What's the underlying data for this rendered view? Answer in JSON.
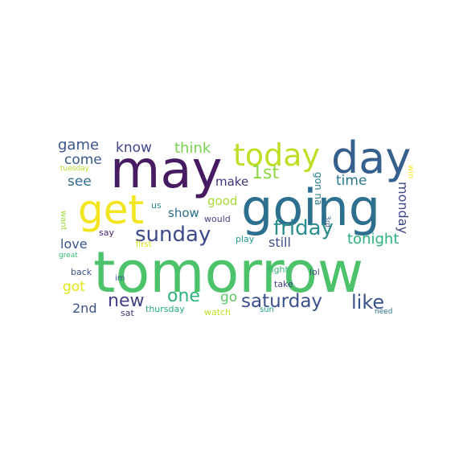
{
  "words": [
    {
      "id": "tomorrow",
      "text": "tomorrow",
      "color": "#4cc26a"
    },
    {
      "id": "going",
      "text": "going",
      "color": "#2c6f8e"
    },
    {
      "id": "may",
      "text": "may",
      "color": "#471b61"
    },
    {
      "id": "day",
      "text": "day",
      "color": "#355f8d"
    },
    {
      "id": "today",
      "text": "today",
      "color": "#bddf26"
    },
    {
      "id": "get",
      "text": "get",
      "color": "#f2e51d"
    },
    {
      "id": "sunday",
      "text": "sunday",
      "color": "#3e4a89"
    },
    {
      "id": "friday",
      "text": "friday",
      "color": "#2b8e8c"
    },
    {
      "id": "saturday",
      "text": "saturday",
      "color": "#3b518b"
    },
    {
      "id": "like",
      "text": "like",
      "color": "#3a538b"
    },
    {
      "id": "new",
      "text": "new",
      "color": "#424186"
    },
    {
      "id": "one",
      "text": "one",
      "color": "#2eb37c"
    },
    {
      "id": "1st",
      "text": "1st",
      "color": "#8ed645"
    },
    {
      "id": "tonight",
      "text": "tonight",
      "color": "#2db27d"
    },
    {
      "id": "think",
      "text": "think",
      "color": "#7ad151"
    },
    {
      "id": "game",
      "text": "game",
      "color": "#3a548c"
    },
    {
      "id": "know",
      "text": "know",
      "color": "#414487"
    },
    {
      "id": "come",
      "text": "come",
      "color": "#38598c"
    },
    {
      "id": "see",
      "text": "see",
      "color": "#306a8e"
    },
    {
      "id": "time",
      "text": "time",
      "color": "#2a768e"
    },
    {
      "id": "make",
      "text": "make",
      "color": "#45337d"
    },
    {
      "id": "good",
      "text": "good",
      "color": "#a5db36"
    },
    {
      "id": "show",
      "text": "show",
      "color": "#2e6d8e"
    },
    {
      "id": "monday",
      "text": "monday",
      "color": "#3f4889"
    },
    {
      "id": "still",
      "text": "still",
      "color": "#3c4f8a"
    },
    {
      "id": "love",
      "text": "love",
      "color": "#39558c"
    },
    {
      "id": "got",
      "text": "got",
      "color": "#e2e418"
    },
    {
      "id": "2nd",
      "text": "2nd",
      "color": "#3b528b"
    },
    {
      "id": "go",
      "text": "go",
      "color": "#5ec962"
    },
    {
      "id": "gonna",
      "text": "gon na",
      "color": "#297b8e"
    },
    {
      "id": "tuesday",
      "text": "tuesday",
      "color": "#b5de2b"
    },
    {
      "id": "us",
      "text": "us",
      "color": "#24878e"
    },
    {
      "id": "would",
      "text": "would",
      "color": "#423f85"
    },
    {
      "id": "want",
      "text": "want",
      "color": "#9bd93c"
    },
    {
      "id": "say",
      "text": "say",
      "color": "#482475"
    },
    {
      "id": "play",
      "text": "play",
      "color": "#1f988b"
    },
    {
      "id": "first",
      "text": "first",
      "color": "#d8e219"
    },
    {
      "id": "great",
      "text": "great",
      "color": "#37b878"
    },
    {
      "id": "right",
      "text": "right",
      "color": "#35b779"
    },
    {
      "id": "lol",
      "text": "lol",
      "color": "#3e4c8a"
    },
    {
      "id": "back",
      "text": "back",
      "color": "#3b528b"
    },
    {
      "id": "im",
      "text": "im",
      "color": "#39568c"
    },
    {
      "id": "take",
      "text": "take",
      "color": "#3f4788"
    },
    {
      "id": "thursday",
      "text": "thursday",
      "color": "#26ad81"
    },
    {
      "id": "sat",
      "text": "sat",
      "color": "#453781"
    },
    {
      "id": "watch",
      "text": "watch",
      "color": "#c2df23"
    },
    {
      "id": "sun",
      "text": "sun",
      "color": "#1fa187"
    },
    {
      "id": "need",
      "text": "need",
      "color": "#2c738e"
    },
    {
      "id": "3rd",
      "text": "3rd",
      "color": "#39568c"
    },
    {
      "id": "win",
      "text": "win",
      "color": "#fde725"
    }
  ]
}
